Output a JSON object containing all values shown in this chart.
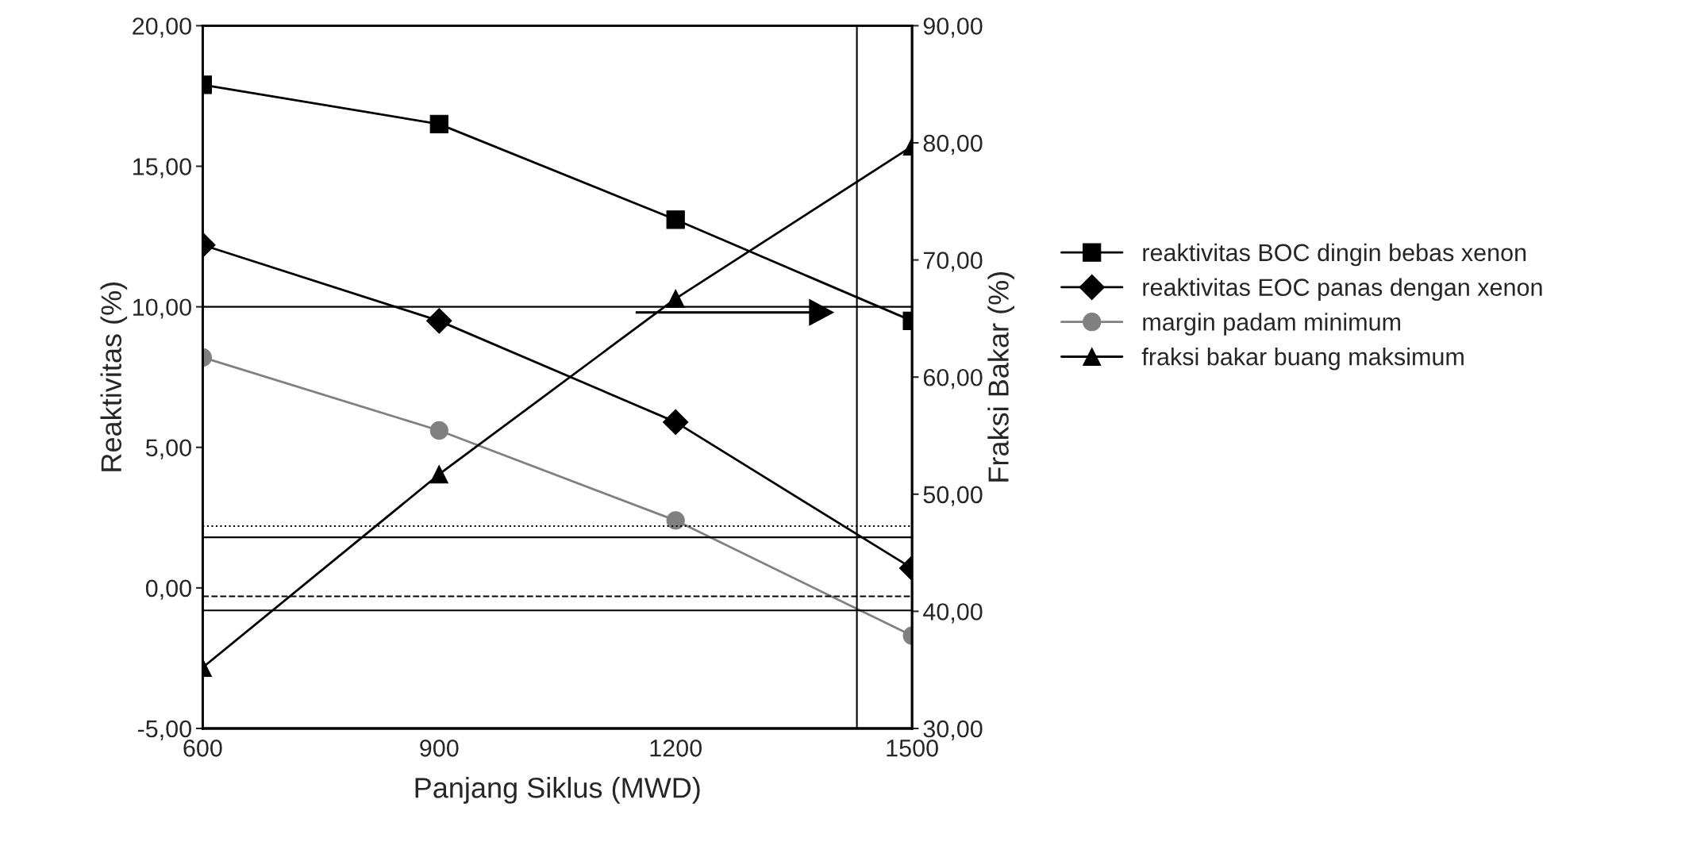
{
  "chart_data": {
    "type": "line",
    "xlabel": "Panjang Siklus (MWD)",
    "ylabel": "Reaktivitas (%)",
    "y2label": "Fraksi Bakar (%)",
    "x": [
      600,
      900,
      1200,
      1500
    ],
    "series": [
      {
        "name": "reaktivitas BOC dingin bebas xenon",
        "color": "#000000",
        "marker": "square",
        "values": [
          17.9,
          16.5,
          13.1,
          9.5
        ]
      },
      {
        "name": "reaktivitas EOC panas dengan xenon",
        "color": "#000000",
        "marker": "diamond",
        "values": [
          12.2,
          9.5,
          5.9,
          0.7
        ]
      },
      {
        "name": "margin padam minimum",
        "color": "#808080",
        "marker": "circle",
        "values": [
          8.2,
          5.6,
          2.4,
          -1.7
        ]
      },
      {
        "name": "fraksi bakar buang maksimum",
        "color": "#000000",
        "marker": "triangle",
        "axis": "y2",
        "values": [
          35.2,
          51.7,
          66.7,
          79.7
        ]
      }
    ],
    "xlim": [
      600,
      1500
    ],
    "xticks": [
      600,
      900,
      1200,
      1500
    ],
    "ylim": [
      -5,
      20
    ],
    "yticks": [
      {
        "value": -5,
        "label": "-5,00"
      },
      {
        "value": 0,
        "label": "0,00"
      },
      {
        "value": 5,
        "label": "5,00"
      },
      {
        "value": 10,
        "label": "10,00"
      },
      {
        "value": 15,
        "label": "15,00"
      },
      {
        "value": 20,
        "label": "20,00"
      }
    ],
    "y2lim": [
      30,
      90
    ],
    "y2ticks": [
      {
        "value": 30,
        "label": "30,00"
      },
      {
        "value": 40,
        "label": "40,00"
      },
      {
        "value": 50,
        "label": "50,00"
      },
      {
        "value": 60,
        "label": "60,00"
      },
      {
        "value": 70,
        "label": "70,00"
      },
      {
        "value": 80,
        "label": "80,00"
      },
      {
        "value": 90,
        "label": "90,00"
      }
    ],
    "ref_lines": [
      {
        "axis": "y",
        "value": 10,
        "line_style": "solid"
      },
      {
        "axis": "y",
        "value": 2.2,
        "line_style": "dotted"
      },
      {
        "axis": "y",
        "value": 1.8,
        "line_style": "solid"
      },
      {
        "axis": "y",
        "value": -0.3,
        "line_style": "dashed"
      },
      {
        "axis": "y",
        "value": -0.8,
        "line_style": "solid"
      },
      {
        "axis": "x",
        "value": 1430,
        "line_style": "solid"
      }
    ],
    "grid": false,
    "legend": "right",
    "line_style": "solid"
  }
}
